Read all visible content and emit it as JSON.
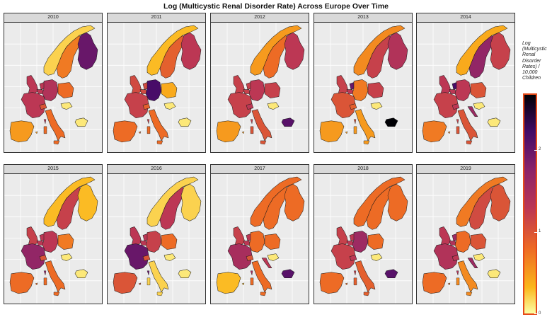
{
  "title": "Log (Multicystic Renal Disorder Rate) Across Europe Over Time",
  "legend": {
    "title": "Log (Multicystic Renal Disorder Rates) / 10,000 Children",
    "ticks": [
      "0",
      "1",
      "2"
    ],
    "range": [
      0,
      2.7
    ],
    "palette": "inferno (high = dark, low = light yellow)"
  },
  "chart_data": {
    "type": "choropleth",
    "title": "Log (Multicystic Renal Disorder Rate) Across Europe Over Time",
    "value_label": "Log (Multicystic Renal Disorder Rates) / 10,000 Children",
    "range": [
      0,
      2.7
    ],
    "countries": [
      "Norway",
      "Sweden",
      "Finland",
      "UK",
      "Netherlands",
      "Belgium",
      "Germany",
      "Poland",
      "France",
      "Switzerland",
      "Austria",
      "Spain",
      "Italy",
      "Croatia",
      "Hungary",
      "Bulgaria"
    ],
    "panels": [
      {
        "year": "2010",
        "values": {
          "Norway": 0.2,
          "Sweden": 0.7,
          "Finland": 2.0,
          "UK": 1.3,
          "Netherlands": 1.3,
          "Belgium": 1.3,
          "Germany": 1.4,
          "Poland": 0.8,
          "France": 1.3,
          "Switzerland": 1.0,
          "Austria": null,
          "Spain": 0.5,
          "Italy": 0.8,
          "Croatia": null,
          "Hungary": 0.1,
          "Bulgaria": 0.1
        }
      },
      {
        "year": "2011",
        "values": {
          "Norway": 0.3,
          "Sweden": 0.9,
          "Finland": 1.3,
          "UK": 1.1,
          "Netherlands": 1.1,
          "Belgium": 1.1,
          "Germany": 2.2,
          "Poland": 0.4,
          "France": 1.2,
          "Switzerland": 0.9,
          "Austria": null,
          "Spain": 0.8,
          "Italy": 0.8,
          "Croatia": null,
          "Hungary": 0.1,
          "Bulgaria": 0.1
        }
      },
      {
        "year": "2012",
        "values": {
          "Norway": 0.5,
          "Sweden": 0.8,
          "Finland": 1.3,
          "UK": 1.2,
          "Netherlands": 1.2,
          "Belgium": 1.2,
          "Germany": 1.3,
          "Poland": 1.2,
          "France": 1.2,
          "Switzerland": 1.3,
          "Austria": null,
          "Spain": 0.5,
          "Italy": 1.0,
          "Croatia": null,
          "Hungary": 0.1,
          "Bulgaria": 2.1
        }
      },
      {
        "year": "2013",
        "values": {
          "Norway": 0.6,
          "Sweden": 1.2,
          "Finland": 1.4,
          "UK": 1.2,
          "Netherlands": 2.0,
          "Belgium": 1.3,
          "Germany": 0.7,
          "Poland": 1.2,
          "France": 1.0,
          "Switzerland": 0.9,
          "Austria": null,
          "Spain": 0.5,
          "Italy": 0.5,
          "Croatia": null,
          "Hungary": 0.1,
          "Bulgaria": 2.7
        }
      },
      {
        "year": "2014",
        "values": {
          "Norway": 0.4,
          "Sweden": 1.7,
          "Finland": 1.2,
          "UK": 1.3,
          "Netherlands": 2.2,
          "Belgium": 1.3,
          "Germany": 1.3,
          "Poland": 1.0,
          "France": 1.2,
          "Switzerland": 1.3,
          "Austria": null,
          "Spain": 0.7,
          "Italy": 1.0,
          "Croatia": 1.6,
          "Hungary": 0.1,
          "Bulgaria": 0.1
        }
      },
      {
        "year": "2015",
        "values": {
          "Norway": 0.3,
          "Sweden": 1.2,
          "Finland": 0.3,
          "UK": 1.2,
          "Netherlands": 1.3,
          "Belgium": 1.3,
          "Germany": 1.3,
          "Poland": 0.7,
          "France": 1.7,
          "Switzerland": 1.0,
          "Austria": null,
          "Spain": 0.8,
          "Italy": 0.8,
          "Croatia": null,
          "Hungary": 0.1,
          "Bulgaria": 0.1
        }
      },
      {
        "year": "2016",
        "values": {
          "Norway": 0.2,
          "Sweden": 1.3,
          "Finland": 0.2,
          "UK": 1.3,
          "Netherlands": 1.3,
          "Belgium": 1.3,
          "Germany": 1.2,
          "Poland": 0.8,
          "France": 2.0,
          "Switzerland": 1.0,
          "Austria": null,
          "Spain": 1.0,
          "Italy": 0.2,
          "Croatia": null,
          "Hungary": 0.1,
          "Bulgaria": 0.1
        }
      },
      {
        "year": "2017",
        "values": {
          "Norway": 0.8,
          "Sweden": 0.8,
          "Finland": 0.8,
          "UK": 1.2,
          "Netherlands": 1.3,
          "Belgium": 1.3,
          "Germany": 0.8,
          "Poland": 0.8,
          "France": 1.5,
          "Switzerland": 1.0,
          "Austria": null,
          "Spain": 0.3,
          "Italy": 0.8,
          "Croatia": 1.3,
          "Hungary": 0.1,
          "Bulgaria": 2.1
        }
      },
      {
        "year": "2018",
        "values": {
          "Norway": 0.8,
          "Sweden": 0.8,
          "Finland": 0.8,
          "UK": 1.2,
          "Netherlands": 1.3,
          "Belgium": 1.3,
          "Germany": 1.6,
          "Poland": 0.8,
          "France": 1.2,
          "Switzerland": 1.3,
          "Austria": null,
          "Spain": 0.8,
          "Italy": 0.9,
          "Croatia": null,
          "Hungary": 0.1,
          "Bulgaria": 2.1
        }
      },
      {
        "year": "2019",
        "values": {
          "Norway": 0.7,
          "Sweden": 1.1,
          "Finland": 1.0,
          "UK": 1.3,
          "Netherlands": 1.6,
          "Belgium": 1.4,
          "Germany": 0.8,
          "Poland": 1.0,
          "France": 1.4,
          "Switzerland": 1.3,
          "Austria": null,
          "Spain": 0.8,
          "Italy": 0.6,
          "Croatia": 1.6,
          "Hungary": 0.1,
          "Bulgaria": 0.1
        }
      }
    ]
  }
}
